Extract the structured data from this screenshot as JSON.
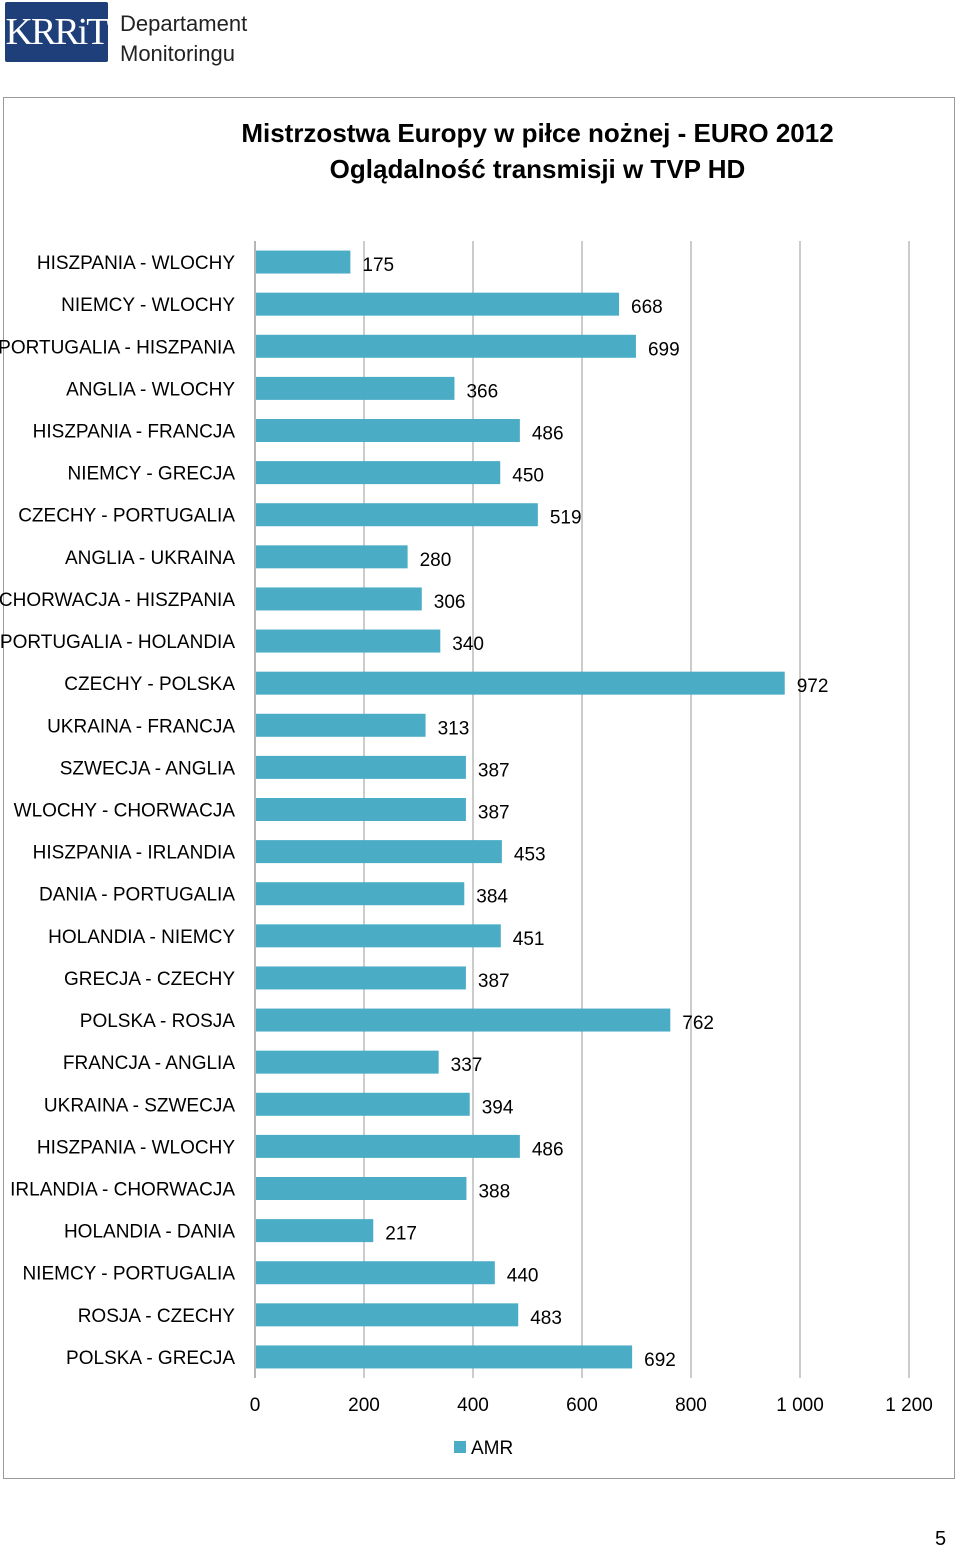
{
  "header": {
    "logo_text": "KRRiT",
    "department_line1": "Departament",
    "department_line2": "Monitoringu"
  },
  "page_number": "5",
  "colors": {
    "bar": "#4bacc6",
    "gridline": "#bfbfbf",
    "axis": "#868686"
  },
  "chart_data": {
    "type": "bar",
    "orientation": "horizontal",
    "title_line1": "Mistrzostwa Europy w piłce nożnej - EURO 2012",
    "title_line2": "Oglądalność transmisji w TVP HD",
    "categories": [
      "HISZPANIA - WLOCHY",
      "NIEMCY - WLOCHY",
      "PORTUGALIA - HISZPANIA",
      "ANGLIA - WLOCHY",
      "HISZPANIA - FRANCJA",
      "NIEMCY - GRECJA",
      "CZECHY - PORTUGALIA",
      "ANGLIA - UKRAINA",
      "CHORWACJA - HISZPANIA",
      "PORTUGALIA - HOLANDIA",
      "CZECHY - POLSKA",
      "UKRAINA - FRANCJA",
      "SZWECJA - ANGLIA",
      "WLOCHY - CHORWACJA",
      "HISZPANIA - IRLANDIA",
      "DANIA - PORTUGALIA",
      "HOLANDIA - NIEMCY",
      "GRECJA - CZECHY",
      "POLSKA - ROSJA",
      "FRANCJA - ANGLIA",
      "UKRAINA - SZWECJA",
      "HISZPANIA - WLOCHY",
      "IRLANDIA - CHORWACJA",
      "HOLANDIA - DANIA",
      "NIEMCY - PORTUGALIA",
      "ROSJA - CZECHY",
      "POLSKA - GRECJA"
    ],
    "series": [
      {
        "name": "AMR",
        "values": [
          175,
          668,
          699,
          366,
          486,
          450,
          519,
          280,
          306,
          340,
          972,
          313,
          387,
          387,
          453,
          384,
          451,
          387,
          762,
          337,
          394,
          486,
          388,
          217,
          440,
          483,
          692
        ]
      }
    ],
    "xlim": [
      0,
      1200
    ],
    "xticks": [
      0,
      200,
      400,
      600,
      800,
      1000,
      1200
    ],
    "xtick_labels": [
      "0",
      "200",
      "400",
      "600",
      "800",
      "1 000",
      "1 200"
    ],
    "grid": true,
    "legend": "bottom"
  }
}
